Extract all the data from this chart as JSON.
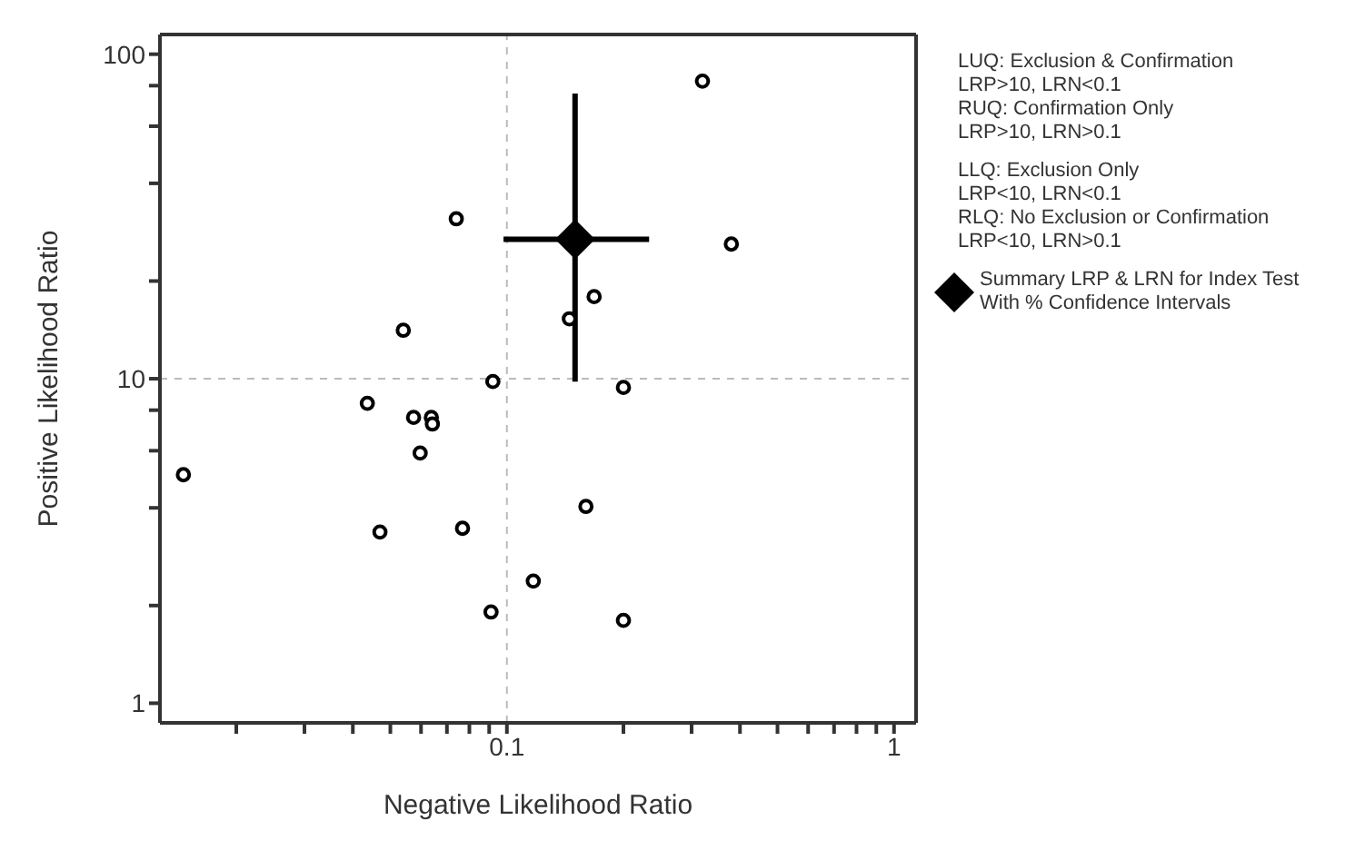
{
  "chart_data": {
    "type": "scatter",
    "xlabel": "Negative Likelihood Ratio",
    "ylabel": "Positive Likelihood Ratio",
    "log": "xy",
    "legend": "right",
    "marker": "circle",
    "xlim": [
      0.0127,
      1.14
    ],
    "ylim": [
      0.87,
      115
    ],
    "xticks": [
      {
        "value": 0.02,
        "label": null
      },
      {
        "value": 0.03,
        "label": null
      },
      {
        "value": 0.04,
        "label": null
      },
      {
        "value": 0.05,
        "label": null
      },
      {
        "value": 0.06,
        "label": null
      },
      {
        "value": 0.07,
        "label": null
      },
      {
        "value": 0.08,
        "label": null
      },
      {
        "value": 0.09,
        "label": null
      },
      0.1,
      {
        "value": 0.2,
        "label": null
      },
      {
        "value": 0.3,
        "label": null
      },
      {
        "value": 0.4,
        "label": null
      },
      {
        "value": 0.5,
        "label": null
      },
      {
        "value": 0.6,
        "label": null
      },
      {
        "value": 0.7,
        "label": null
      },
      {
        "value": 0.8,
        "label": null
      },
      {
        "value": 0.9,
        "label": null
      },
      1
    ],
    "yticks": [
      1,
      {
        "value": 2,
        "label": null
      },
      {
        "value": 4,
        "label": null
      },
      {
        "value": 6,
        "label": null
      },
      {
        "value": 8,
        "label": null
      },
      10,
      {
        "value": 20,
        "label": null
      },
      {
        "value": 40,
        "label": null
      },
      {
        "value": 60,
        "label": null
      },
      {
        "value": 80,
        "label": null
      },
      100
    ],
    "ref_lines": [
      {
        "axis": "x",
        "value": 0.1,
        "color": "#bbbbbb",
        "line_style": "dashed"
      },
      {
        "axis": "y",
        "value": 10,
        "color": "#bbbbbb",
        "line_style": "dashed"
      }
    ],
    "annotations": [
      "LUQ: Exclusion & Confirmation\nLRP>10, LRN<0.1",
      "RUQ: Confirmation Only\nLRP>10, LRN>0.1",
      "LLQ: Exclusion Only\nLRP<10, LRN<0.1",
      "RLQ: No Exclusion or Confirmation\nLRP<10, LRN>0.1"
    ],
    "series": [
      {
        "color": "#000000",
        "x": [
          0.32,
          0.074,
          0.38,
          0.168,
          0.145,
          0.054,
          0.092,
          0.2,
          0.0436,
          0.0574,
          0.0638,
          0.0642,
          0.0597,
          0.0146,
          0.16,
          0.047,
          0.0768,
          0.117,
          0.091,
          0.2
        ],
        "values": [
          82.6,
          31.1,
          26,
          17.9,
          15.3,
          14.1,
          9.8,
          9.4,
          8.4,
          7.6,
          7.6,
          7.25,
          5.9,
          5.06,
          4.04,
          3.37,
          3.46,
          2.38,
          1.91,
          1.8
        ]
      },
      {
        "name": "Summary LRP & LRN for Index Test With  % Confidence Intervals",
        "color": "#000000",
        "marker": "diamond",
        "x": [
          0.15
        ],
        "values": [
          26.9
        ],
        "errors": [
          [
            9.8,
            75.6
          ]
        ],
        "xerrors": [
          [
            0.098,
            0.233
          ]
        ]
      }
    ]
  }
}
